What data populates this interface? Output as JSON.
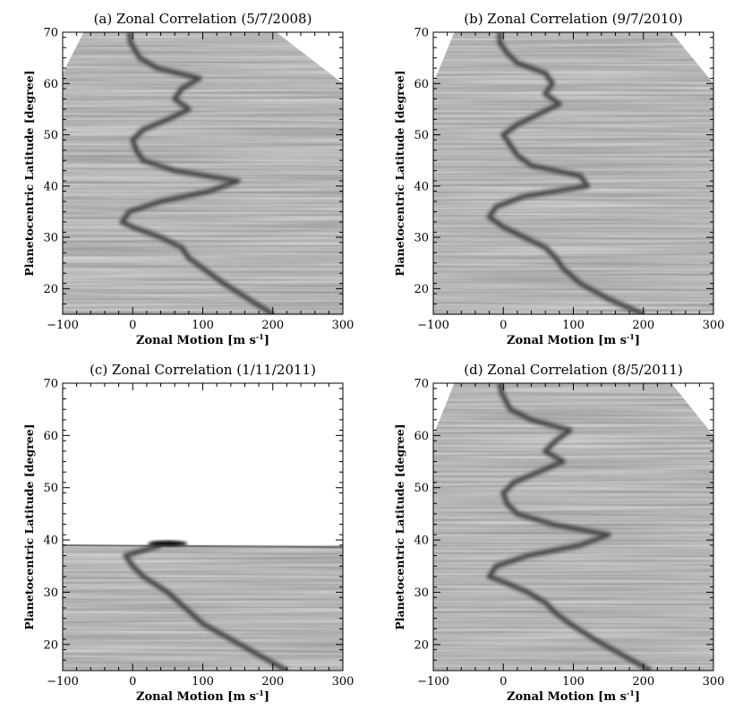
{
  "figure": {
    "panels": [
      {
        "title": "(a) Zonal Correlation (5/7/2008)",
        "xlabel": "Zonal Motion [m s",
        "xlabel_sup": "-1",
        "xlabel_end": "]",
        "ylabel": "Planetocentric Latitude [degree]"
      },
      {
        "title": "(b) Zonal Correlation (9/7/2010)",
        "xlabel": "Zonal Motion [m s",
        "xlabel_sup": "-1",
        "xlabel_end": "]",
        "ylabel": "Planetocentric Latitude [degree]"
      },
      {
        "title": "(c) Zonal Correlation (1/11/2011)",
        "xlabel": "Zonal Motion [m s",
        "xlabel_sup": "-1",
        "xlabel_end": "]",
        "ylabel": "Planetocentric Latitude [degree]"
      },
      {
        "title": "(d) Zonal Correlation (8/5/2011)",
        "xlabel": "Zonal Motion [m s",
        "xlabel_sup": "-1",
        "xlabel_end": "]",
        "ylabel": "Planetocentric Latitude [degree]"
      }
    ]
  },
  "chart_data": [
    {
      "type": "heatmap",
      "title": "(a) Zonal Correlation (5/7/2008)",
      "xlabel": "Zonal Motion [m s-1]",
      "ylabel": "Planetocentric Latitude [degree]",
      "xlim": [
        -100,
        300
      ],
      "ylim": [
        15,
        70
      ],
      "xticks": [
        -100,
        0,
        100,
        200,
        300
      ],
      "yticks": [
        20,
        30,
        40,
        50,
        60,
        70
      ],
      "colormap": "grayscale (dark = high correlation)",
      "ridge": {
        "lat": [
          15,
          18,
          21,
          24,
          26,
          28,
          30,
          32,
          33,
          35,
          37,
          39,
          41,
          43,
          45,
          47,
          49,
          51,
          53,
          55,
          57,
          59,
          61,
          63,
          65,
          68,
          70
        ],
        "u": [
          200,
          165,
          130,
          100,
          80,
          70,
          40,
          0,
          -15,
          -5,
          40,
          110,
          150,
          60,
          15,
          5,
          0,
          15,
          50,
          80,
          60,
          70,
          95,
          35,
          10,
          -3,
          -5
        ]
      },
      "mask": {
        "top_left_lat": [
          62,
          70
        ],
        "top_right_u": [
          205,
          300
        ]
      }
    },
    {
      "type": "heatmap",
      "title": "(b) Zonal Correlation (9/7/2010)",
      "xlabel": "Zonal Motion [m s-1]",
      "ylabel": "Planetocentric Latitude [degree]",
      "xlim": [
        -100,
        300
      ],
      "ylim": [
        15,
        70
      ],
      "xticks": [
        -100,
        0,
        100,
        200,
        300
      ],
      "yticks": [
        20,
        30,
        40,
        50,
        60,
        70
      ],
      "colormap": "grayscale (dark = high correlation)",
      "ridge": {
        "lat": [
          15,
          18,
          21,
          24,
          26,
          28,
          30,
          32,
          34,
          36,
          38,
          40,
          42,
          44,
          46,
          48,
          50,
          52,
          54,
          56,
          58,
          60,
          62,
          64,
          66,
          68,
          70
        ],
        "u": [
          200,
          150,
          110,
          85,
          75,
          60,
          30,
          0,
          -20,
          -10,
          30,
          120,
          110,
          40,
          20,
          10,
          0,
          20,
          50,
          80,
          60,
          70,
          60,
          20,
          5,
          -5,
          -5
        ]
      },
      "mask": {
        "top_left_lat": [
          60,
          70
        ],
        "top_right_u": [
          240,
          300
        ]
      }
    },
    {
      "type": "heatmap",
      "title": "(c) Zonal Correlation (1/11/2011)",
      "xlabel": "Zonal Motion [m s-1]",
      "ylabel": "Planetocentric Latitude [degree]",
      "xlim": [
        -100,
        300
      ],
      "ylim": [
        15,
        70
      ],
      "xticks": [
        -100,
        0,
        100,
        200,
        300
      ],
      "yticks": [
        20,
        30,
        40,
        50,
        60,
        70
      ],
      "colormap": "grayscale (dark = high correlation)",
      "data_top_lat": 39,
      "ridge": {
        "lat": [
          15,
          18,
          21,
          24,
          27,
          30,
          33,
          35,
          37,
          39
        ],
        "u": [
          220,
          180,
          140,
          100,
          75,
          50,
          15,
          0,
          -10,
          40
        ]
      }
    },
    {
      "type": "heatmap",
      "title": "(d) Zonal Correlation (8/5/2011)",
      "xlabel": "Zonal Motion [m s-1]",
      "ylabel": "Planetocentric Latitude [degree]",
      "xlim": [
        -100,
        300
      ],
      "ylim": [
        15,
        70
      ],
      "xticks": [
        -100,
        0,
        100,
        200,
        300
      ],
      "yticks": [
        20,
        30,
        40,
        50,
        60,
        70
      ],
      "colormap": "grayscale (dark = high correlation)",
      "ridge": {
        "lat": [
          15,
          18,
          21,
          24,
          26,
          28,
          30,
          32,
          33,
          35,
          37,
          39,
          41,
          43,
          45,
          47,
          49,
          51,
          53,
          55,
          57,
          59,
          61,
          63,
          65,
          68,
          70
        ],
        "u": [
          210,
          170,
          130,
          95,
          75,
          60,
          35,
          0,
          -20,
          -10,
          35,
          110,
          150,
          70,
          20,
          5,
          0,
          15,
          50,
          85,
          60,
          75,
          95,
          40,
          10,
          -2,
          -5
        ]
      },
      "mask": {
        "top_left_lat": [
          60,
          70
        ],
        "top_right_u": [
          240,
          300
        ]
      }
    }
  ]
}
